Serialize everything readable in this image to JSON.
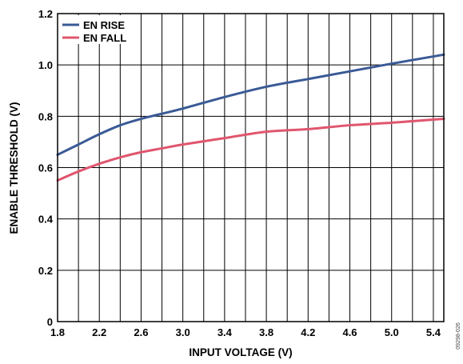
{
  "chart_data": {
    "type": "line",
    "xlabel": "INPUT VOLTAGE (V)",
    "ylabel": "ENABLE THRESHOLD (V)",
    "xlim": [
      1.8,
      5.5
    ],
    "ylim": [
      0,
      1.2
    ],
    "x_ticks": [
      "1.8",
      "2.2",
      "2.6",
      "3.0",
      "3.4",
      "3.8",
      "4.2",
      "4.6",
      "5.0",
      "5.4"
    ],
    "y_ticks": [
      "0",
      "0.2",
      "0.4",
      "0.6",
      "0.8",
      "1.0",
      "1.2"
    ],
    "grid": true,
    "legend_position": "top-left",
    "series": [
      {
        "name": "EN RISE",
        "color": "#3a5a96",
        "x": [
          1.8,
          2.0,
          2.2,
          2.4,
          2.6,
          2.8,
          3.0,
          3.4,
          3.8,
          4.2,
          4.6,
          5.0,
          5.5
        ],
        "y": [
          0.65,
          0.69,
          0.73,
          0.765,
          0.79,
          0.81,
          0.83,
          0.875,
          0.915,
          0.945,
          0.975,
          1.005,
          1.04
        ]
      },
      {
        "name": "EN FALL",
        "color": "#e0566e",
        "x": [
          1.8,
          2.0,
          2.2,
          2.4,
          2.6,
          2.8,
          3.0,
          3.4,
          3.8,
          4.2,
          4.6,
          5.0,
          5.5
        ],
        "y": [
          0.55,
          0.585,
          0.615,
          0.64,
          0.66,
          0.675,
          0.69,
          0.715,
          0.74,
          0.75,
          0.765,
          0.775,
          0.79
        ]
      }
    ],
    "figure_id": "09298-026"
  }
}
